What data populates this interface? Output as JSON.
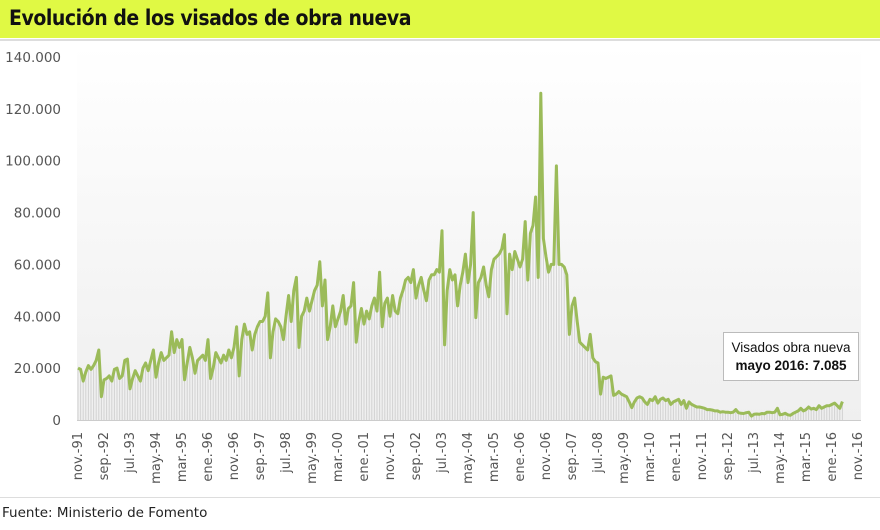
{
  "header": {
    "title": "Evolución de los visados de obra nueva",
    "accent_color": "#e0f944"
  },
  "footer": {
    "source": "Fuente: Ministerio de Fomento"
  },
  "callout": {
    "line1": "Visados obra nueva",
    "line2": "mayo 2016: 7.085"
  },
  "chart_data": {
    "type": "line",
    "title": "Evolución de los visados de obra nueva",
    "xlabel": "",
    "ylabel": "",
    "x_start": "nov.-91",
    "x_end": "may.-16",
    "frequency": "monthly",
    "ylim": [
      0,
      140000
    ],
    "y_ticks": [
      0,
      20000,
      40000,
      60000,
      80000,
      100000,
      120000,
      140000
    ],
    "y_tick_labels": [
      "0",
      "20.000",
      "40.000",
      "60.000",
      "80.000",
      "100.000",
      "120.000",
      "140.000"
    ],
    "x_tick_labels": [
      "nov.-91",
      "sep.-92",
      "jul.-93",
      "may.-94",
      "mar.-95",
      "ene.-96",
      "nov.-96",
      "sep.-97",
      "jul.-98",
      "may.-99",
      "mar.-00",
      "ene.-01",
      "nov.-01",
      "sep.-02",
      "jul.-03",
      "may.-04",
      "mar.-05",
      "ene.-06",
      "nov.-06",
      "sep.-07",
      "jul.-08",
      "may.-09",
      "mar.-10",
      "ene.-11",
      "nov.-11",
      "sep.-12",
      "jul.-13",
      "may.-14",
      "mar.-15",
      "ene.-16",
      "nov.-16"
    ],
    "x_tick_step_months": 10,
    "grid": false,
    "drop_lines": true,
    "line_color": "#9bbb59",
    "series": [
      {
        "values": [
          20000,
          19500,
          15000,
          18500,
          21000,
          19500,
          21000,
          23000,
          27000,
          9000,
          15500,
          16000,
          17000,
          15000,
          19500,
          20000,
          16000,
          17000,
          23000,
          23500,
          12000,
          16000,
          19000,
          17000,
          15000,
          20000,
          22000,
          19000,
          23000,
          27000,
          16500,
          22000,
          26000,
          23000,
          24000,
          25000,
          34000,
          26000,
          31000,
          28000,
          31000,
          15500,
          22000,
          28000,
          24000,
          18000,
          23000,
          24000,
          25000,
          23000,
          31000,
          16000,
          20000,
          26000,
          24000,
          22000,
          25000,
          23000,
          27000,
          24000,
          28000,
          36000,
          17000,
          31000,
          37000,
          33000,
          34000,
          27000,
          33000,
          36000,
          38000,
          38000,
          40000,
          49000,
          24000,
          34000,
          39000,
          38000,
          36000,
          31000,
          40000,
          48000,
          38000,
          50000,
          55000,
          28000,
          40000,
          42000,
          47000,
          42000,
          46000,
          50000,
          52000,
          61000,
          44000,
          54000,
          31000,
          36000,
          44000,
          36000,
          39000,
          42000,
          48000,
          37000,
          43000,
          44000,
          53000,
          30000,
          38000,
          43000,
          37000,
          42000,
          39000,
          44000,
          47000,
          42000,
          57000,
          36000,
          45000,
          47000,
          40000,
          48000,
          42000,
          41000,
          47000,
          50000,
          54000,
          55000,
          53000,
          58000,
          47000,
          52000,
          55000,
          50000,
          46000,
          54000,
          56000,
          56000,
          58000,
          57000,
          73000,
          29000,
          50000,
          58000,
          54000,
          56000,
          44000,
          52000,
          57000,
          64000,
          53000,
          60000,
          80000,
          39500,
          53000,
          55000,
          59000,
          52000,
          47500,
          58000,
          62000,
          63000,
          64000,
          66000,
          71500,
          41000,
          64000,
          58000,
          65000,
          62000,
          59000,
          62000,
          76500,
          54000,
          72000,
          75000,
          86000,
          55000,
          126000,
          70000,
          63000,
          57000,
          60000,
          60000,
          98000,
          60000,
          60000,
          59000,
          56000,
          33000,
          44000,
          47000,
          38000,
          30000,
          29000,
          28000,
          27000,
          33000,
          24000,
          22500,
          22000,
          10000,
          16500,
          16000,
          16500,
          17000,
          9500,
          10000,
          11000,
          10000,
          9500,
          9000,
          7000,
          4800,
          7000,
          8500,
          9000,
          8500,
          7000,
          6000,
          8000,
          7500,
          9000,
          6500,
          8000,
          8500,
          7500,
          8000,
          6000,
          7000,
          7500,
          8000,
          6000,
          7500,
          4500,
          7000,
          6000,
          5500,
          5000,
          5000,
          4800,
          4500,
          4000,
          4000,
          3800,
          3500,
          3500,
          3000,
          3200,
          3000,
          3000,
          2800,
          3000,
          4000,
          2800,
          2600,
          2500,
          2800,
          3000,
          1500,
          2200,
          2300,
          2200,
          2500,
          2400,
          3000,
          3000,
          2800,
          3000,
          4500,
          2000,
          2200,
          2600,
          2000,
          1800,
          2500,
          3000,
          3500,
          4500,
          3500,
          4000,
          5000,
          4200,
          4500,
          4000,
          5500,
          4500,
          5000,
          5500,
          5500,
          6000,
          6500,
          5500,
          4500,
          7085
        ]
      }
    ]
  }
}
